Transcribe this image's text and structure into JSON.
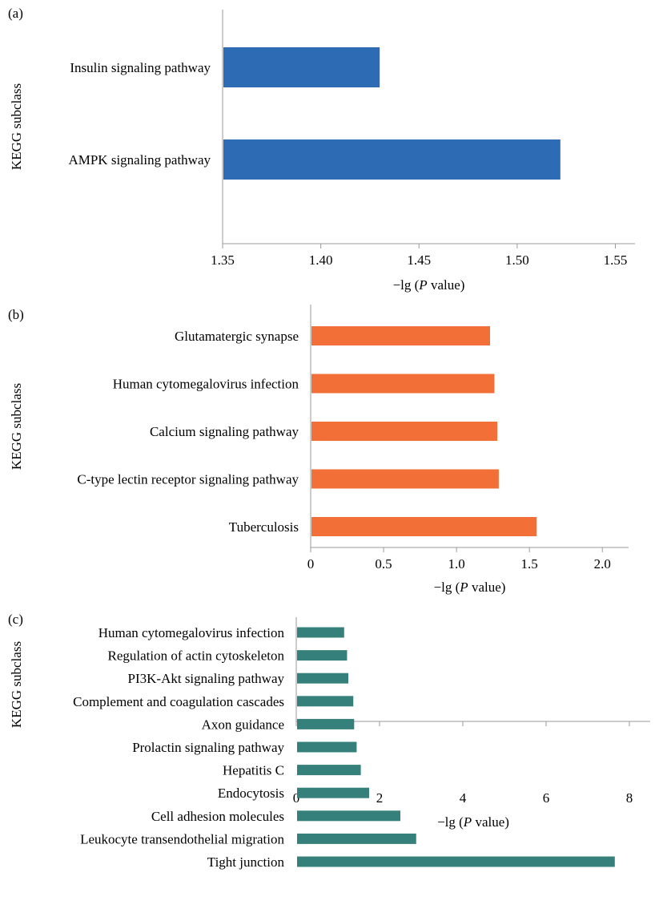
{
  "chart_data": [
    {
      "type": "bar",
      "orientation": "horizontal",
      "panel": "(a)",
      "ylabel": "KEGG subclass",
      "xlabel_prefix": "−lg (",
      "xlabel_italic": "P",
      "xlabel_suffix": " value)",
      "categories": [
        "Insulin signaling pathway",
        "AMPK signaling pathway"
      ],
      "values": [
        1.43,
        1.522
      ],
      "xlim": [
        1.35,
        1.56
      ],
      "xticks": [
        "1.35",
        "1.40",
        "1.45",
        "1.50",
        "1.55"
      ],
      "color": "#2e6bb5"
    },
    {
      "type": "bar",
      "orientation": "horizontal",
      "panel": "(b)",
      "ylabel": "KEGG subclass",
      "xlabel_prefix": "−lg (",
      "xlabel_italic": "P",
      "xlabel_suffix": " value)",
      "categories": [
        "Glutamatergic synapse",
        "Human cytomegalovirus infection",
        "Calcium signaling pathway",
        "C-type lectin receptor signaling pathway",
        "Tuberculosis"
      ],
      "values": [
        1.23,
        1.26,
        1.28,
        1.29,
        1.55
      ],
      "xlim": [
        0,
        2.18
      ],
      "xticks": [
        "0",
        "0.5",
        "1.0",
        "1.5",
        "2.0"
      ],
      "color": "#f27037"
    },
    {
      "type": "bar",
      "orientation": "horizontal",
      "panel": "(c)",
      "ylabel": "KEGG subclass",
      "xlabel_prefix": "−lg (",
      "xlabel_italic": "P",
      "xlabel_suffix": " value)",
      "categories": [
        "Human cytomegalovirus infection",
        "Regulation of actin cytoskeleton",
        "PI3K-Akt signaling pathway",
        "Complement and coagulation cascades",
        "Axon guidance",
        "Prolactin signaling pathway",
        "Hepatitis C",
        "Endocytosis",
        "Cell adhesion molecules",
        "Leukocyte transendothelial migration",
        "Tight junction"
      ],
      "values": [
        1.15,
        1.22,
        1.25,
        1.37,
        1.39,
        1.45,
        1.55,
        1.75,
        2.5,
        2.88,
        7.65
      ],
      "xlim": [
        0,
        8.5
      ],
      "xticks": [
        "0",
        "2",
        "4",
        "6",
        "8"
      ],
      "color": "#36807b"
    }
  ]
}
